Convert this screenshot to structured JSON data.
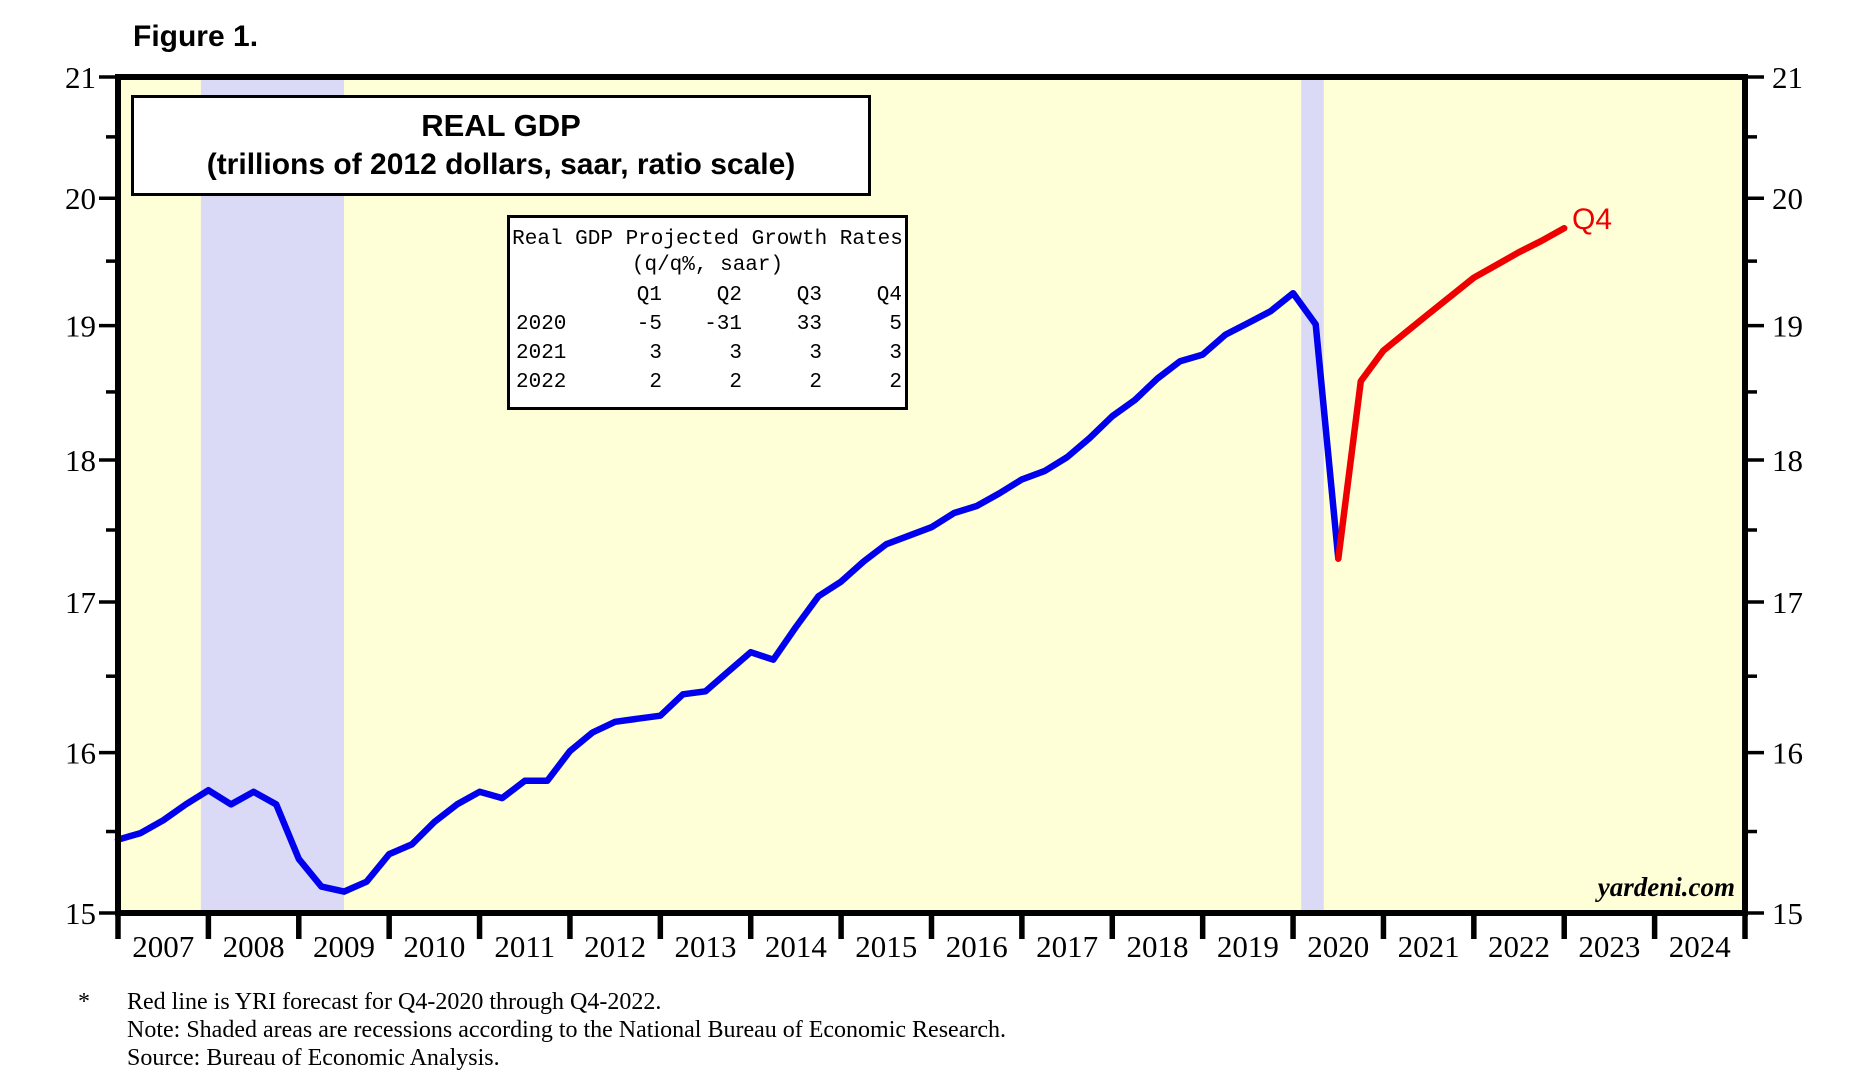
{
  "figure_label": "Figure 1.",
  "watermark": "yardeni.com",
  "chart_data": {
    "type": "line",
    "title": "REAL GDP",
    "subtitle": "(trillions of 2012 dollars, saar, ratio scale)",
    "forecast_end_label": "Q4",
    "y_scale": "log",
    "x_range": [
      2007,
      2025
    ],
    "y_range": [
      15,
      21
    ],
    "y_ticks": [
      15,
      16,
      17,
      18,
      19,
      20,
      21
    ],
    "y_minor_ticks": [
      15.5,
      16.5,
      17.5,
      18.5,
      19.5,
      20.5
    ],
    "x_tick_years": [
      2007,
      2008,
      2009,
      2010,
      2011,
      2012,
      2013,
      2014,
      2015,
      2016,
      2017,
      2018,
      2019,
      2020,
      2021,
      2022,
      2023,
      2024,
      2025
    ],
    "x_labels": [
      "2007",
      "2008",
      "2009",
      "2010",
      "2011",
      "2012",
      "2013",
      "2014",
      "2015",
      "2016",
      "2017",
      "2018",
      "2019",
      "2020",
      "2021",
      "2022",
      "2023",
      "2024"
    ],
    "recessions": [
      [
        2007.917,
        2009.5
      ],
      [
        2020.09,
        2020.34
      ]
    ],
    "series": [
      {
        "name": "actual",
        "color": "#0000EE",
        "x": [
          2007.0,
          2007.25,
          2007.5,
          2007.75,
          2008.0,
          2008.25,
          2008.5,
          2008.75,
          2009.0,
          2009.25,
          2009.5,
          2009.75,
          2010.0,
          2010.25,
          2010.5,
          2010.75,
          2011.0,
          2011.25,
          2011.5,
          2011.75,
          2012.0,
          2012.25,
          2012.5,
          2012.75,
          2013.0,
          2013.25,
          2013.5,
          2013.75,
          2014.0,
          2014.25,
          2014.5,
          2014.75,
          2015.0,
          2015.25,
          2015.5,
          2015.75,
          2016.0,
          2016.25,
          2016.5,
          2016.75,
          2017.0,
          2017.25,
          2017.5,
          2017.75,
          2018.0,
          2018.25,
          2018.5,
          2018.75,
          2019.0,
          2019.25,
          2019.5,
          2019.75,
          2020.0,
          2020.25,
          2020.5
        ],
        "y": [
          15.45,
          15.49,
          15.57,
          15.67,
          15.76,
          15.67,
          15.75,
          15.67,
          15.33,
          15.16,
          15.13,
          15.19,
          15.36,
          15.42,
          15.56,
          15.67,
          15.75,
          15.71,
          15.82,
          15.82,
          16.01,
          16.13,
          16.2,
          16.22,
          16.24,
          16.38,
          16.4,
          16.53,
          16.66,
          16.61,
          16.83,
          17.04,
          17.14,
          17.28,
          17.4,
          17.46,
          17.52,
          17.62,
          17.67,
          17.76,
          17.86,
          17.92,
          18.02,
          18.16,
          18.32,
          18.44,
          18.6,
          18.73,
          18.78,
          18.93,
          19.02,
          19.11,
          19.25,
          19.01,
          17.3
        ]
      },
      {
        "name": "forecast",
        "color": "#EE0000",
        "x": [
          2020.5,
          2020.75,
          2021.0,
          2021.25,
          2021.5,
          2021.75,
          2022.0,
          2022.25,
          2022.5,
          2022.75,
          2023.0
        ],
        "y": [
          17.3,
          18.58,
          18.81,
          18.95,
          19.09,
          19.23,
          19.37,
          19.47,
          19.57,
          19.66,
          19.76
        ]
      }
    ]
  },
  "growth_table": {
    "title": "Real GDP Projected Growth Rates",
    "subtitle": "(q/q%, saar)",
    "columns": [
      "",
      "Q1",
      "Q2",
      "Q3",
      "Q4"
    ],
    "rows": [
      {
        "year": "2020",
        "values": [
          "-5",
          "-31",
          "33",
          "5"
        ]
      },
      {
        "year": "2021",
        "values": [
          "3",
          "3",
          "3",
          "3"
        ]
      },
      {
        "year": "2022",
        "values": [
          "2",
          "2",
          "2",
          "2"
        ]
      }
    ]
  },
  "footnotes": {
    "marker": "*",
    "line1": "Red line is YRI forecast for Q4-2020 through Q4-2022.",
    "line2": "Note: Shaded areas are recessions according to the National Bureau of Economic Research.",
    "line3": "Source: Bureau of Economic Analysis."
  },
  "colors": {
    "plot_bg": "#FFFFD7",
    "recession": "#DADAF6",
    "actual": "#0000EE",
    "forecast": "#EE0000",
    "frame": "#000000"
  }
}
